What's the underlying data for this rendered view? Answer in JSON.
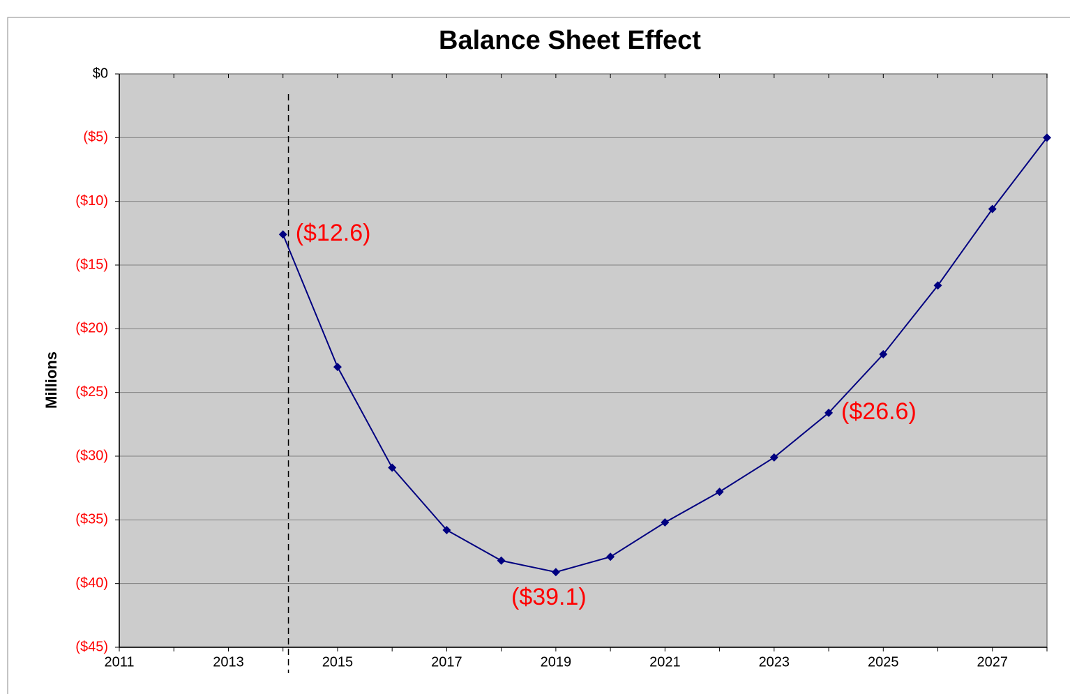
{
  "chart_data": {
    "type": "line",
    "title": "Balance Sheet Effect",
    "ylabel": "Millions",
    "x": [
      2014,
      2015,
      2016,
      2017,
      2018,
      2019,
      2020,
      2021,
      2022,
      2023,
      2024,
      2025,
      2026,
      2027,
      2028
    ],
    "series": [
      {
        "name": "Balance Sheet Effect",
        "color": "#000080",
        "values": [
          -12.6,
          -23.0,
          -30.9,
          -35.8,
          -38.2,
          -39.1,
          -37.9,
          -35.2,
          -32.8,
          -30.1,
          -26.6,
          -22.0,
          -16.6,
          -10.6,
          -5.0
        ],
        "value_labels": [
          "($12.6)",
          null,
          null,
          null,
          null,
          "($39.1)",
          null,
          null,
          null,
          null,
          "($26.6)",
          null,
          null,
          null,
          null
        ]
      }
    ],
    "xlim": [
      2011,
      2028
    ],
    "xticks": [
      2011,
      2013,
      2015,
      2017,
      2019,
      2021,
      2023,
      2025,
      2027
    ],
    "xminor": [
      2012,
      2014,
      2016,
      2018,
      2020,
      2022,
      2024,
      2026,
      2028
    ],
    "ylim": [
      -45,
      0
    ],
    "yticks": [
      {
        "value": 0,
        "label": "$0"
      },
      {
        "value": -5,
        "label": "($5)"
      },
      {
        "value": -10,
        "label": "($10)"
      },
      {
        "value": -15,
        "label": "($15)"
      },
      {
        "value": -20,
        "label": "($20)"
      },
      {
        "value": -25,
        "label": "($25)"
      },
      {
        "value": -30,
        "label": "($30)"
      },
      {
        "value": -35,
        "label": "($35)"
      },
      {
        "value": -40,
        "label": "($40)"
      },
      {
        "value": -45,
        "label": "($45)"
      }
    ],
    "grid": true,
    "plot_background": "#cccccc",
    "negative_tick_color": "#ff0000",
    "data_label_color": "#ff0000",
    "reference_line_x": 2014.1
  }
}
